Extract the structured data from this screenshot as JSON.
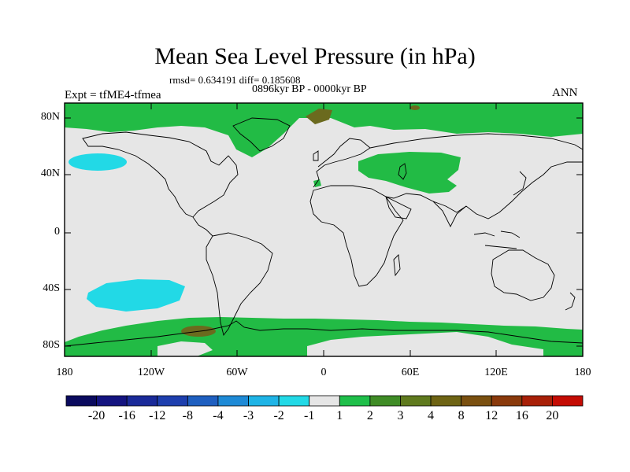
{
  "title": "Mean Sea Level Pressure (in hPa)",
  "stats": "rmsd= 0.634191 diff= 0.185608",
  "period": "0896kyr BP - 0000kyr BP",
  "experiment": "Expt = tfME4-tfmea",
  "season": "ANN",
  "lat_labels": [
    "80N",
    "40N",
    "0",
    "40S",
    "80S"
  ],
  "lon_labels": [
    "180",
    "120W",
    "60W",
    "0",
    "60E",
    "120E",
    "180"
  ],
  "colorbar": {
    "colors": [
      "#0a0a5e",
      "#141480",
      "#1a2a99",
      "#1e3fae",
      "#1f5fc0",
      "#1e8ad6",
      "#1fb4e6",
      "#22d9e6",
      "#e6e6e6",
      "#1fbf4a",
      "#3f8c26",
      "#5f7a1e",
      "#6e6414",
      "#7a5010",
      "#8a3a0c",
      "#a82008",
      "#c40c04"
    ],
    "labels": [
      "-20",
      "-16",
      "-12",
      "-8",
      "-4",
      "-3",
      "-2",
      "-1",
      "1",
      "2",
      "3",
      "4",
      "8",
      "12",
      "16",
      "20"
    ]
  },
  "palette": {
    "neutral": "#e6e6e6",
    "green": "#22bb45",
    "cyan": "#22d9e6",
    "brown": "#6b6a1e"
  }
}
